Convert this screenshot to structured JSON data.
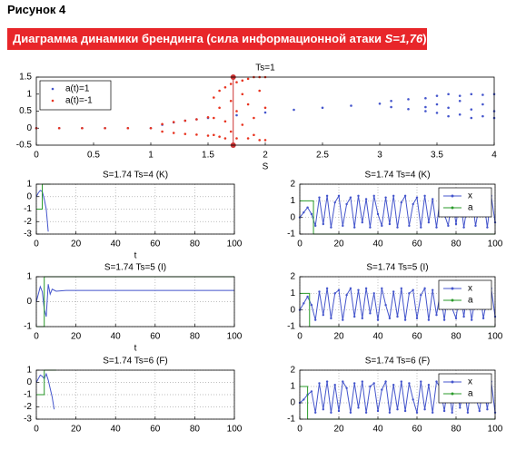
{
  "figure": {
    "label": "Рисунок 4",
    "caption_prefix": "Диаграмма динамики брендинга (сила информационной атаки ",
    "caption_italic": "S=1,76",
    "caption_suffix": ")"
  },
  "chart_data": [
    {
      "type": "scatter",
      "title": "Ts=1",
      "x_label": "S",
      "xlim": [
        0,
        4
      ],
      "xticks": [
        0,
        0.5,
        1,
        1.5,
        2,
        2.5,
        3,
        3.5,
        4
      ],
      "ylim": [
        -0.5,
        1.5
      ],
      "yticks": [
        -0.5,
        0,
        0.5,
        1,
        1.5
      ],
      "grid": false,
      "legend": "upper left",
      "vline": 1.72,
      "vline_color": "#cc3333",
      "series": [
        {
          "name": "a(t)=1",
          "color": "#4455cc",
          "x": [
            0,
            0.2,
            0.4,
            0.6,
            0.8,
            1.0,
            1.1,
            1.2,
            1.3,
            1.4,
            1.5,
            1.75,
            2.0,
            2.25,
            2.5,
            2.75,
            3.0,
            3.1,
            3.1,
            3.25,
            3.25,
            3.4,
            3.4,
            3.4,
            3.5,
            3.5,
            3.5,
            3.6,
            3.6,
            3.6,
            3.7,
            3.7,
            3.7,
            3.8,
            3.8,
            3.8,
            3.9,
            3.9,
            3.9,
            4.0,
            4.0,
            4.0
          ],
          "values": [
            0,
            0,
            0,
            0,
            0,
            0,
            0.1,
            0.17,
            0.22,
            0.26,
            0.3,
            0.38,
            0.46,
            0.54,
            0.6,
            0.66,
            0.72,
            0.62,
            0.8,
            0.56,
            0.85,
            0.5,
            0.88,
            0.62,
            0.45,
            0.95,
            0.7,
            0.35,
            1.0,
            0.6,
            0.4,
            0.95,
            0.8,
            0.3,
            1.0,
            0.55,
            0.35,
            0.98,
            0.7,
            0.3,
            1.0,
            0.5
          ]
        },
        {
          "name": "a(t)=-1",
          "color": "#e8331f",
          "x": [
            0,
            0.2,
            0.4,
            0.6,
            0.8,
            1.0,
            1.1,
            1.1,
            1.2,
            1.2,
            1.3,
            1.3,
            1.4,
            1.4,
            1.5,
            1.5,
            1.55,
            1.55,
            1.55,
            1.6,
            1.6,
            1.6,
            1.65,
            1.65,
            1.65,
            1.7,
            1.7,
            1.7,
            1.75,
            1.75,
            1.75,
            1.8,
            1.8,
            1.8,
            1.85,
            1.85,
            1.85,
            1.9,
            1.9,
            1.9,
            1.95,
            1.95,
            1.95,
            2.0,
            2.0,
            2.0
          ],
          "values": [
            0,
            0,
            0,
            0,
            0,
            0,
            0.12,
            -0.1,
            0.18,
            -0.14,
            0.22,
            -0.17,
            0.26,
            -0.19,
            0.32,
            -0.22,
            0.9,
            0.3,
            -0.2,
            1.1,
            0.6,
            -0.25,
            1.2,
            0.2,
            -0.3,
            1.3,
            0.8,
            -0.1,
            1.35,
            0.5,
            -0.3,
            1.4,
            1.0,
            0.1,
            1.45,
            0.7,
            -0.3,
            1.5,
            0.3,
            -0.2,
            1.5,
            1.1,
            -0.35,
            1.5,
            0.6,
            -0.35
          ]
        }
      ]
    },
    {
      "type": "line",
      "title": "S=1.74 Ts=4 (K)",
      "x_label": "t",
      "xlim": [
        0,
        100
      ],
      "xticks": [
        0,
        20,
        40,
        60,
        80,
        100
      ],
      "ylim": [
        -3,
        1
      ],
      "yticks": [
        -3,
        -2,
        -1,
        0,
        1
      ],
      "grid": true,
      "series": [
        {
          "color": "#4455cc",
          "x": [
            0,
            1,
            2,
            3,
            4,
            5,
            6
          ],
          "values": [
            0,
            0.3,
            0.5,
            0.4,
            -0.2,
            -1.0,
            -2.8
          ]
        },
        {
          "color": "#2a9a2a",
          "x": [
            0,
            3,
            3,
            7
          ],
          "values": [
            -1,
            -1,
            1,
            1
          ]
        }
      ]
    },
    {
      "type": "line",
      "title": "S=1.74 Ts=4 (K)",
      "xlim": [
        0,
        100
      ],
      "xticks": [
        0,
        20,
        40,
        60,
        80,
        100
      ],
      "ylim": [
        -1,
        2
      ],
      "yticks": [
        -1,
        0,
        1,
        2
      ],
      "grid": true,
      "legend": "upper right",
      "x": [
        0,
        2,
        4,
        6,
        8,
        10,
        12,
        14,
        16,
        18,
        20,
        22,
        24,
        26,
        28,
        30,
        32,
        34,
        36,
        38,
        40,
        42,
        44,
        46,
        48,
        50,
        52,
        54,
        56,
        58,
        60,
        62,
        64,
        66,
        68,
        70,
        72,
        74,
        76,
        78,
        80,
        82,
        84,
        86,
        88,
        90,
        92,
        94,
        96,
        98,
        100
      ],
      "series": [
        {
          "name": "x",
          "color": "#4455cc",
          "marker": true,
          "values": [
            0,
            0.3,
            0.6,
            0.2,
            -0.5,
            1.2,
            -0.4,
            1.3,
            -0.6,
            0.9,
            1.3,
            -0.5,
            0.8,
            1.2,
            -0.6,
            1.3,
            -0.3,
            1.1,
            -0.6,
            1.3,
            0.2,
            -0.5,
            1.2,
            -0.4,
            1.3,
            -0.6,
            0.9,
            1.3,
            -0.5,
            0.8,
            1.2,
            -0.6,
            1.3,
            -0.3,
            1.1,
            -0.6,
            1.3,
            0.2,
            -0.5,
            1.2,
            -0.4,
            1.3,
            -0.6,
            0.9,
            1.3,
            -0.5,
            0.8,
            1.2,
            -0.6,
            1.3,
            -0.3
          ]
        },
        {
          "name": "a",
          "color": "#2a9a2a",
          "x": [
            0,
            7,
            7,
            100
          ],
          "values": [
            1,
            1,
            -1,
            -1
          ]
        }
      ]
    },
    {
      "type": "line",
      "title": "S=1.74 Ts=5 (I)",
      "x_label": "t",
      "xlim": [
        0,
        100
      ],
      "xticks": [
        0,
        20,
        40,
        60,
        80,
        100
      ],
      "ylim": [
        -1,
        1
      ],
      "yticks": [
        -1,
        0,
        1
      ],
      "grid": true,
      "series": [
        {
          "color": "#4455cc",
          "x": [
            0,
            1,
            2,
            3,
            4,
            5,
            6,
            7,
            8,
            10,
            15,
            100
          ],
          "values": [
            0,
            0.3,
            0.6,
            0.4,
            -0.3,
            -0.6,
            0.7,
            0.3,
            0.5,
            0.42,
            0.45,
            0.45
          ]
        },
        {
          "color": "#2a9a2a",
          "x": [
            0,
            4,
            4,
            100
          ],
          "values": [
            -1,
            -1,
            1,
            1
          ]
        }
      ]
    },
    {
      "type": "line",
      "title": "S=1.74 Ts=5 (I)",
      "xlim": [
        0,
        100
      ],
      "xticks": [
        0,
        20,
        40,
        60,
        80,
        100
      ],
      "ylim": [
        -1,
        2
      ],
      "yticks": [
        -1,
        0,
        1,
        2
      ],
      "grid": true,
      "legend": "upper right",
      "x": [
        0,
        2,
        4,
        6,
        8,
        10,
        12,
        14,
        16,
        18,
        20,
        22,
        24,
        26,
        28,
        30,
        32,
        34,
        36,
        38,
        40,
        42,
        44,
        46,
        48,
        50,
        52,
        54,
        56,
        58,
        60,
        62,
        64,
        66,
        68,
        70,
        72,
        74,
        76,
        78,
        80,
        82,
        84,
        86,
        88,
        90,
        92,
        94,
        96,
        98,
        100
      ],
      "series": [
        {
          "name": "x",
          "color": "#4455cc",
          "marker": true,
          "values": [
            0,
            0.4,
            0.8,
            0.3,
            -0.6,
            1.1,
            -0.3,
            1.3,
            -0.5,
            1.0,
            1.2,
            -0.6,
            0.9,
            1.3,
            -0.4,
            1.2,
            -0.5,
            1.3,
            -0.2,
            1.0,
            -0.6,
            1.3,
            0.3,
            -0.5,
            1.1,
            -0.4,
            1.3,
            -0.6,
            1.0,
            1.2,
            -0.5,
            0.9,
            1.3,
            -0.6,
            1.2,
            -0.3,
            1.1,
            -0.6,
            1.3,
            0.1,
            -0.5,
            1.2,
            -0.4,
            1.3,
            -0.6,
            0.9,
            1.2,
            -0.5,
            0.8,
            1.3,
            -0.4
          ]
        },
        {
          "name": "a",
          "color": "#2a9a2a",
          "x": [
            0,
            5,
            5,
            100
          ],
          "values": [
            1,
            1,
            -1,
            -1
          ]
        }
      ]
    },
    {
      "type": "line",
      "title": "S=1.74 Ts=6 (F)",
      "xlim": [
        0,
        100
      ],
      "xticks": [
        0,
        20,
        40,
        60,
        80,
        100
      ],
      "ylim": [
        -3,
        1
      ],
      "yticks": [
        -3,
        -2,
        -1,
        0,
        1
      ],
      "grid": true,
      "series": [
        {
          "color": "#4455cc",
          "x": [
            0,
            1,
            2,
            3,
            4,
            5,
            6,
            7,
            8,
            9
          ],
          "values": [
            0,
            0.3,
            0.6,
            0.5,
            0.3,
            0.7,
            0.2,
            -0.5,
            -1.2,
            -2.2
          ]
        },
        {
          "color": "#2a9a2a",
          "x": [
            0,
            4,
            4,
            10
          ],
          "values": [
            -1,
            -1,
            1,
            1
          ]
        }
      ]
    },
    {
      "type": "line",
      "title": "S=1.74 Ts=6 (F)",
      "xlim": [
        0,
        100
      ],
      "xticks": [
        0,
        20,
        40,
        60,
        80,
        100
      ],
      "ylim": [
        -1,
        2
      ],
      "yticks": [
        -1,
        0,
        1,
        2
      ],
      "grid": true,
      "legend": "upper right",
      "x": [
        0,
        2,
        4,
        6,
        8,
        10,
        12,
        14,
        16,
        18,
        20,
        22,
        24,
        26,
        28,
        30,
        32,
        34,
        36,
        38,
        40,
        42,
        44,
        46,
        48,
        50,
        52,
        54,
        56,
        58,
        60,
        62,
        64,
        66,
        68,
        70,
        72,
        74,
        76,
        78,
        80,
        82,
        84,
        86,
        88,
        90,
        92,
        94,
        96,
        98,
        100
      ],
      "series": [
        {
          "name": "x",
          "color": "#4455cc",
          "marker": true,
          "values": [
            0,
            0.2,
            0.5,
            0.7,
            -0.6,
            1.2,
            -0.4,
            1.3,
            -0.6,
            1.1,
            -0.5,
            1.3,
            0.9,
            -0.6,
            1.2,
            -0.3,
            1.3,
            -0.6,
            1.0,
            1.2,
            -0.5,
            0.8,
            1.3,
            -0.6,
            1.1,
            -0.4,
            1.3,
            -0.5,
            1.2,
            0.2,
            -0.6,
            1.3,
            -0.4,
            1.1,
            -0.6,
            1.3,
            0.9,
            -0.5,
            1.2,
            -0.6,
            1.3,
            -0.3,
            1.0,
            -0.6,
            1.3,
            0.4,
            -0.5,
            1.2,
            -0.4,
            1.3,
            -0.6
          ]
        },
        {
          "name": "a",
          "color": "#2a9a2a",
          "x": [
            0,
            4,
            4,
            100
          ],
          "values": [
            1,
            1,
            -1,
            -1
          ]
        }
      ]
    }
  ]
}
